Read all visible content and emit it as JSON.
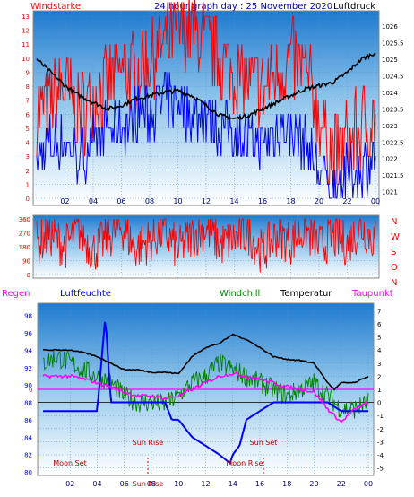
{
  "chart_data": [
    {
      "type": "line",
      "title": "24 hour graph day : 25 November 2020",
      "left_label": "Windstarke",
      "right_label": "Luftdruck",
      "x_ticks": [
        "02",
        "04",
        "06",
        "08",
        "10",
        "12",
        "14",
        "16",
        "18",
        "20",
        "22",
        "00"
      ],
      "left_ticks": [
        "0",
        "1",
        "2",
        "3",
        "4",
        "5",
        "6",
        "7",
        "8",
        "9",
        "10",
        "11",
        "12",
        "13"
      ],
      "right_ticks": [
        "1021",
        "1021.5",
        "1022",
        "1022.5",
        "1023",
        "1023.5",
        "1024",
        "1024.5",
        "1025",
        "1025.5",
        "1026"
      ],
      "ylim_left": [
        0,
        13
      ],
      "ylim_right": [
        1020.8,
        1026.3
      ],
      "series": [
        {
          "name": "Luftdruck",
          "color": "#000000",
          "x": [
            0,
            1,
            2,
            3,
            4,
            5,
            6,
            7,
            8,
            9,
            10,
            11,
            12,
            13,
            14,
            15,
            16,
            17,
            18,
            19,
            20,
            21,
            22,
            23,
            24
          ],
          "values": [
            1025.0,
            1024.6,
            1024.2,
            1023.9,
            1023.7,
            1023.5,
            1023.6,
            1023.8,
            1023.9,
            1024.0,
            1024.05,
            1023.9,
            1023.6,
            1023.3,
            1023.2,
            1023.3,
            1023.5,
            1023.7,
            1023.9,
            1024.1,
            1024.2,
            1024.3,
            1024.6,
            1025.0,
            1025.2
          ]
        },
        {
          "name": "Windboen",
          "color": "#ff0000",
          "x": [
            0,
            1,
            2,
            3,
            4,
            5,
            6,
            7,
            8,
            9,
            10,
            11,
            12,
            13,
            14,
            15,
            16,
            17,
            18,
            19,
            20,
            21,
            22,
            23,
            24
          ],
          "values": [
            6,
            7,
            8,
            6,
            7,
            8,
            9,
            9,
            10,
            11,
            12,
            12,
            11,
            10,
            9,
            8,
            8,
            9,
            10,
            9,
            6,
            3,
            4,
            5,
            6
          ]
        },
        {
          "name": "Windmittel",
          "color": "#0000ff",
          "x": [
            0,
            1,
            2,
            3,
            4,
            5,
            6,
            7,
            8,
            9,
            10,
            11,
            12,
            13,
            14,
            15,
            16,
            17,
            18,
            19,
            20,
            21,
            22,
            23,
            24
          ],
          "values": [
            3,
            4,
            4,
            3,
            4,
            5,
            5,
            6,
            6,
            7,
            7,
            6,
            6,
            5,
            5,
            4,
            4,
            5,
            5,
            4,
            2,
            1,
            2,
            2,
            3
          ]
        }
      ]
    },
    {
      "type": "line",
      "left_ticks": [
        "0",
        "90",
        "180",
        "270",
        "360"
      ],
      "right_ticks": [
        "N",
        "W",
        "S",
        "O",
        "N"
      ],
      "ylim": [
        0,
        360
      ],
      "series": [
        {
          "name": "Windrichtung",
          "color": "#ff0000",
          "x": [
            0,
            1,
            2,
            3,
            4,
            5,
            6,
            7,
            8,
            9,
            10,
            11,
            12,
            13,
            14,
            15,
            16,
            17,
            18,
            19,
            20,
            21,
            22,
            23,
            24
          ],
          "values": [
            200,
            260,
            180,
            290,
            150,
            240,
            310,
            170,
            220,
            280,
            160,
            250,
            300,
            190,
            230,
            270,
            140,
            260,
            210,
            290,
            180,
            240,
            200,
            310,
            220
          ]
        }
      ]
    },
    {
      "type": "line",
      "legend": [
        "Regen",
        "Luftfeuchte",
        "Windchill",
        "Temperatur",
        "Taupunkt"
      ],
      "legend_colors": [
        "#ff00ff",
        "#0000ff",
        "#008000",
        "#000000",
        "#ff00ff"
      ],
      "left_ticks": [
        "80",
        "82",
        "84",
        "86",
        "88",
        "90",
        "92",
        "94",
        "96",
        "98"
      ],
      "right_ticks": [
        "-5",
        "-4",
        "-3",
        "-2",
        "-1",
        "0",
        "1",
        "2",
        "3",
        "4",
        "5",
        "6",
        "7"
      ],
      "ylim_left": [
        80,
        99
      ],
      "ylim_right": [
        -5.3,
        7.3
      ],
      "zero_label": "0",
      "annotations": [
        "Moon Set",
        "Sun Rise",
        "Sun Set",
        "Moon Rise",
        "Sun Rise"
      ],
      "series": [
        {
          "name": "Temperatur",
          "color": "#000000",
          "x": [
            0,
            2,
            3,
            4,
            5,
            6,
            7,
            8,
            9,
            10,
            11,
            12,
            13,
            14,
            15,
            16,
            17,
            18,
            19,
            20,
            21,
            21.5,
            22,
            23,
            24
          ],
          "values": [
            4.0,
            4.0,
            3.8,
            3.5,
            3.0,
            2.5,
            2.5,
            2.3,
            2.3,
            2.2,
            3.5,
            4.2,
            4.5,
            5.2,
            4.8,
            4.2,
            3.5,
            3.3,
            3.2,
            3.0,
            1.5,
            1.0,
            1.5,
            1.5,
            2.0
          ]
        },
        {
          "name": "Windchill",
          "color": "#008000",
          "x": [
            0,
            1,
            2,
            3,
            4,
            5,
            6,
            7,
            8,
            9,
            10,
            11,
            12,
            13,
            14,
            15,
            16,
            17,
            18,
            19,
            20,
            21,
            22,
            23,
            24
          ],
          "values": [
            3.0,
            3.5,
            3.0,
            2.5,
            2.0,
            1.5,
            0.5,
            0.0,
            0.0,
            -0.2,
            0.5,
            1.5,
            2.0,
            3.0,
            2.5,
            2.0,
            1.5,
            1.0,
            0.5,
            1.0,
            1.5,
            0.5,
            -0.5,
            -0.5,
            0.0
          ]
        },
        {
          "name": "Taupunkt",
          "color": "#ff00ff",
          "x": [
            0,
            2,
            3,
            4,
            5,
            6,
            7,
            8,
            9,
            10,
            11,
            12,
            13,
            14,
            15,
            16,
            17,
            18,
            19,
            20,
            21,
            22,
            23,
            24
          ],
          "values": [
            2.0,
            2.0,
            1.8,
            1.5,
            1.2,
            0.8,
            0.5,
            0.5,
            0.3,
            0.5,
            1.0,
            1.5,
            2.0,
            2.2,
            2.0,
            1.8,
            1.5,
            1.2,
            1.0,
            0.8,
            -0.5,
            -1.5,
            -0.5,
            0.0
          ]
        },
        {
          "name": "Luftfeuchte",
          "color": "#0000ff",
          "x": [
            0,
            2,
            3,
            4,
            4.6,
            5,
            6,
            7,
            8,
            9,
            9.5,
            10,
            10.5,
            11,
            12,
            13,
            13.8,
            14,
            14.5,
            15,
            16,
            17,
            18,
            19,
            20,
            21,
            22,
            23,
            24
          ],
          "values": [
            87,
            87,
            87,
            87,
            98,
            88,
            88,
            88,
            88,
            88,
            86,
            86,
            85,
            84,
            83,
            82,
            81,
            82,
            83,
            86,
            87,
            88,
            88,
            88,
            88,
            88,
            87,
            87,
            87
          ]
        }
      ]
    }
  ]
}
